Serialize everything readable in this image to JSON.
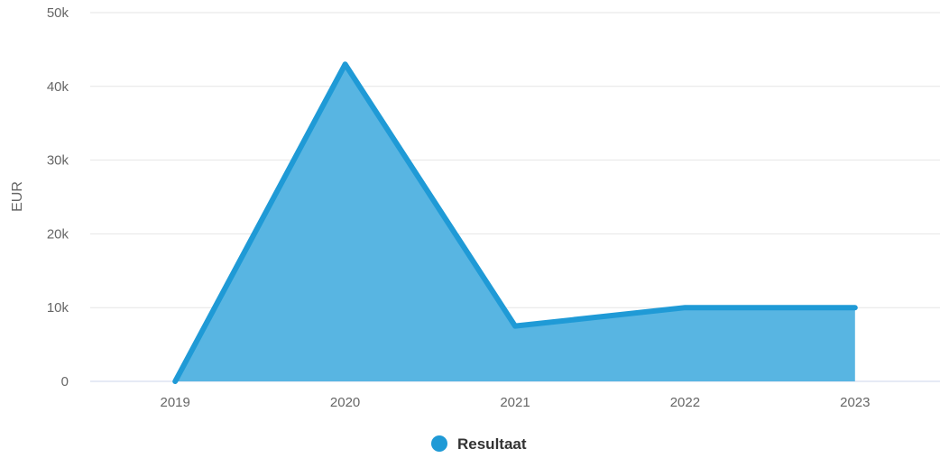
{
  "chart_data": {
    "type": "area",
    "x": [
      "2019",
      "2020",
      "2021",
      "2022",
      "2023"
    ],
    "series": [
      {
        "name": "Resultaat",
        "values": [
          0,
          43000,
          7500,
          10000,
          10000
        ],
        "color": "#1f9ad6",
        "fill": "#58b5e2"
      }
    ],
    "ylabel": "EUR",
    "xlabel": "",
    "ylim": [
      0,
      50000
    ],
    "yticks": [
      "0",
      "10k",
      "20k",
      "30k",
      "40k",
      "50k"
    ],
    "grid": true,
    "legend_position": "bottom-center"
  }
}
